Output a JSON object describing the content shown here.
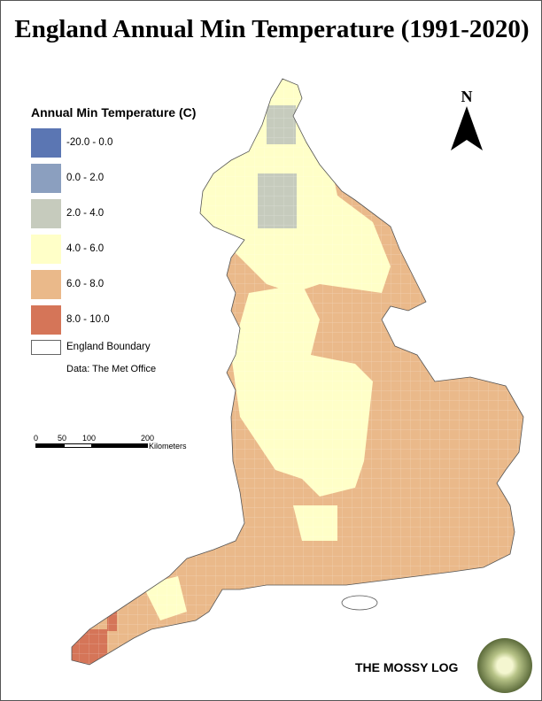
{
  "title": "England Annual Min Temperature (1991-2020)",
  "legend": {
    "title": "Annual Min Temperature (C)",
    "classes": [
      {
        "label": "-20.0 - 0.0",
        "color": "#5b76b3"
      },
      {
        "label": "0.0 - 2.0",
        "color": "#8b9fbf"
      },
      {
        "label": "2.0 - 4.0",
        "color": "#c6cbbd"
      },
      {
        "label": "4.0 - 6.0",
        "color": "#ffffc8"
      },
      {
        "label": "6.0 - 8.0",
        "color": "#eab98a"
      },
      {
        "label": "8.0 - 10.0",
        "color": "#d57558"
      }
    ],
    "boundary_label": "England Boundary"
  },
  "source": "Data: The Met Office",
  "scale": {
    "ticks": [
      "0",
      "50",
      "100",
      "200"
    ],
    "unit": "Kilometers"
  },
  "north": "N",
  "brand": "THE MOSSY LOG"
}
